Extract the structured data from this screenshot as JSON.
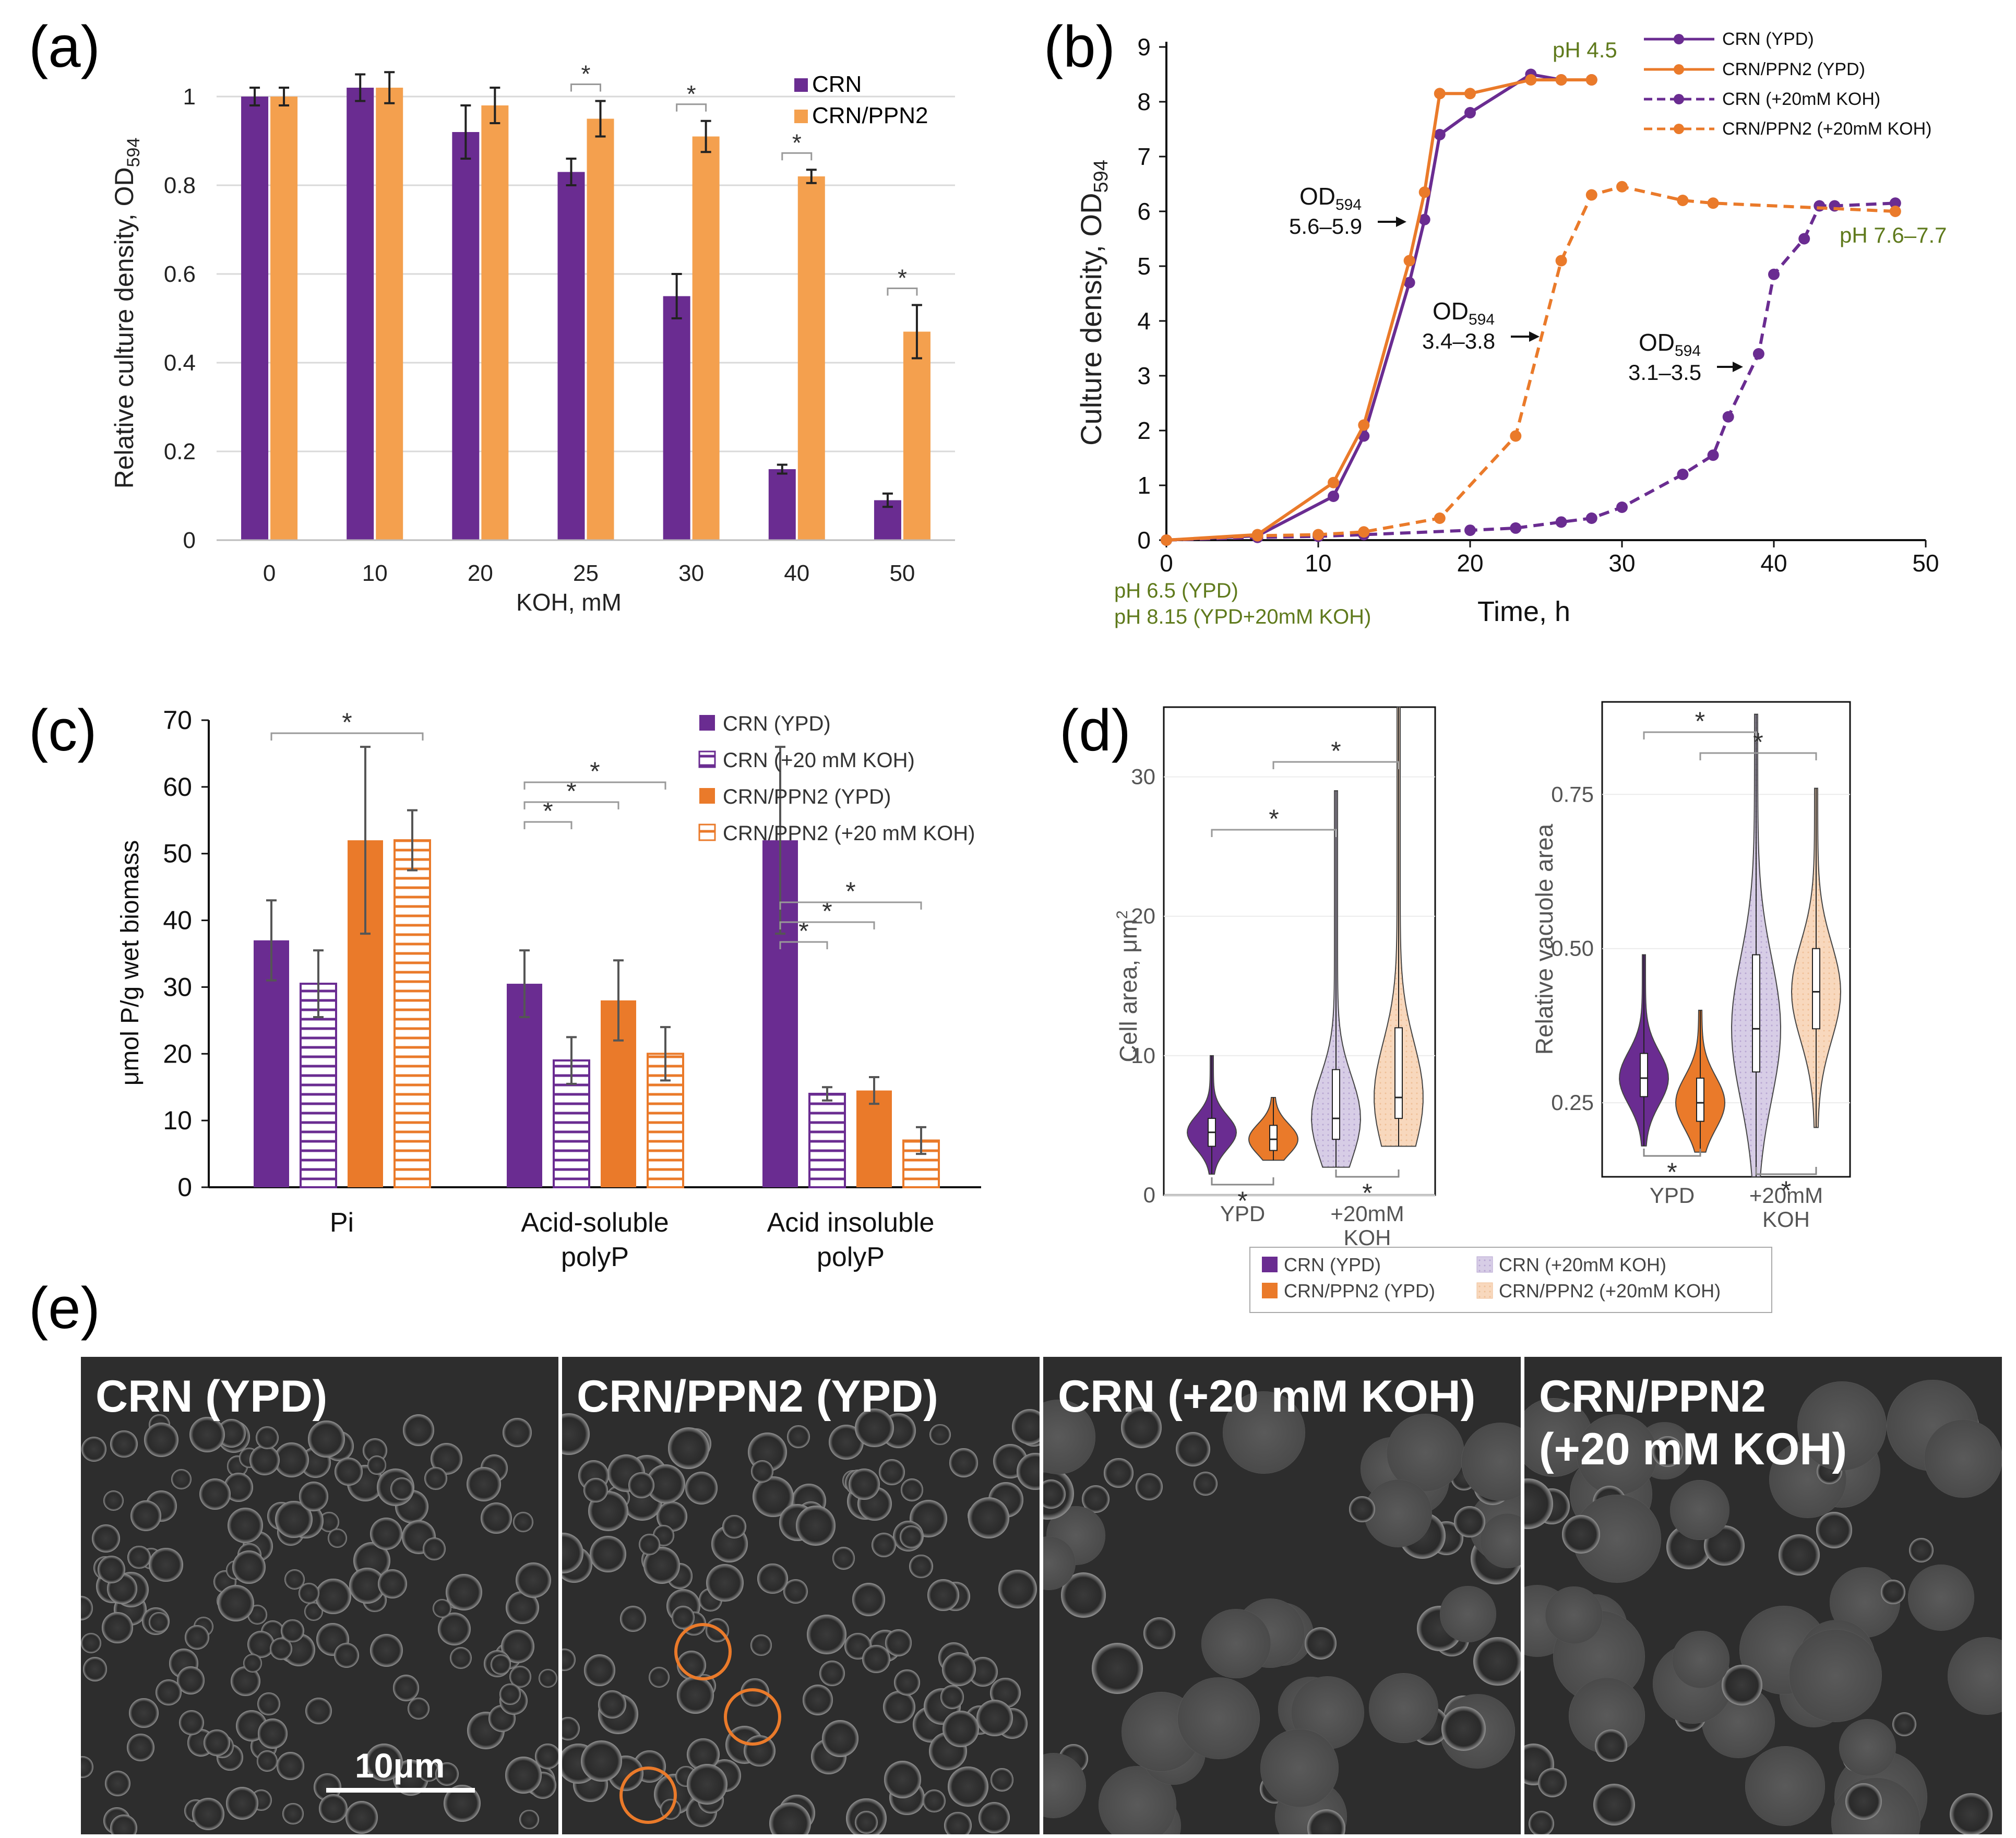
{
  "colors": {
    "crn": "#6a2c91",
    "crn_ppn2": "#f4a04e",
    "crn_ppn2_dark": "#ea7a2a",
    "crn_koh_light": "#d7cde6",
    "crn_ppn2_koh_light": "#f8d8bd",
    "ph_text": "#5f7a1c",
    "grid": "#d9d9d9"
  },
  "panels": {
    "a": "(a)",
    "b": "(b)",
    "c": "(c)",
    "d": "(d)",
    "e": "(e)"
  },
  "chart_data": [
    {
      "id": "a",
      "type": "bar",
      "xlabel": "KOH, mM",
      "ylabel": "Relative culture density, OD",
      "ylabel_sub": "594",
      "ylim": [
        0,
        1
      ],
      "yticks": [
        0,
        0.2,
        0.4,
        0.6,
        0.8,
        1
      ],
      "ytick_labels": [
        "0",
        "0.2",
        "0.4",
        "0.6",
        "0.8",
        "1"
      ],
      "categories": [
        "0",
        "10",
        "20",
        "25",
        "30",
        "40",
        "50"
      ],
      "series": [
        {
          "name": "CRN",
          "values": [
            1.0,
            1.02,
            0.92,
            0.83,
            0.55,
            0.16,
            0.09
          ],
          "errors": [
            0.02,
            0.03,
            0.06,
            0.03,
            0.05,
            0.01,
            0.015
          ]
        },
        {
          "name": "CRN/PPN2",
          "values": [
            1.0,
            1.02,
            0.98,
            0.95,
            0.91,
            0.82,
            0.47
          ],
          "errors": [
            0.02,
            0.035,
            0.04,
            0.04,
            0.035,
            0.015,
            0.06
          ]
        }
      ],
      "significance": [
        "25",
        "30",
        "40",
        "50"
      ],
      "star": "*",
      "grid": true,
      "legend": "top-right"
    },
    {
      "id": "b",
      "type": "line",
      "xlabel": "Time, h",
      "ylabel": "Culture density, OD",
      "ylabel_sub": "594",
      "xlim": [
        0,
        50
      ],
      "ylim": [
        0,
        9
      ],
      "xticks": [
        0,
        10,
        20,
        30,
        40,
        50
      ],
      "yticks": [
        0,
        1,
        2,
        3,
        4,
        5,
        6,
        7,
        8,
        9
      ],
      "series": [
        {
          "name": "CRN (YPD)",
          "dashed": false,
          "color": "crn",
          "x": [
            0,
            6,
            11,
            13,
            16,
            17,
            18,
            20,
            24,
            26,
            28
          ],
          "y": [
            0,
            0.08,
            0.8,
            1.9,
            4.7,
            5.85,
            7.4,
            7.8,
            8.5,
            8.4,
            8.4
          ]
        },
        {
          "name": "CRN/PPN2 (YPD)",
          "dashed": false,
          "color": "crn_ppn2_dark",
          "x": [
            0,
            6,
            11,
            13,
            16,
            17,
            18,
            20,
            24,
            26,
            28
          ],
          "y": [
            0,
            0.1,
            1.05,
            2.1,
            5.1,
            6.35,
            8.15,
            8.15,
            8.4,
            8.4,
            8.4
          ]
        },
        {
          "name": "CRN (+20mM KOH)",
          "dashed": true,
          "color": "crn",
          "x": [
            0,
            6,
            10,
            13,
            20,
            23,
            26,
            28,
            30,
            34,
            36,
            37,
            39,
            40,
            42,
            43,
            44,
            48
          ],
          "y": [
            0,
            0.05,
            0.07,
            0.1,
            0.18,
            0.22,
            0.33,
            0.4,
            0.6,
            1.2,
            1.55,
            2.25,
            3.4,
            4.85,
            5.5,
            6.1,
            6.1,
            6.15
          ]
        },
        {
          "name": "CRN/PPN2 (+20mM KOH)",
          "dashed": true,
          "color": "crn_ppn2_dark",
          "x": [
            0,
            6,
            10,
            13,
            18,
            23,
            26,
            28,
            30,
            34,
            36,
            48
          ],
          "y": [
            0,
            0.08,
            0.1,
            0.15,
            0.4,
            1.9,
            5.1,
            6.3,
            6.45,
            6.2,
            6.15,
            6.0
          ]
        }
      ],
      "annotations": {
        "ph_top": "pH 4.5",
        "ph_right": "pH 7.6–7.7",
        "ph_start_1": "pH 6.5 (YPD)",
        "ph_start_2": "pH 8.15 (YPD+20mM KOH)",
        "od_label": "OD",
        "od_sub": "594",
        "od_1": "5.6–5.9",
        "od_2": "3.4–3.8",
        "od_3": "3.1–3.5"
      },
      "grid": false,
      "legend": "top-right"
    },
    {
      "id": "c",
      "type": "bar",
      "ylabel": "μmol P/g wet biomass",
      "ylim": [
        0,
        70
      ],
      "yticks": [
        0,
        10,
        20,
        30,
        40,
        50,
        60,
        70
      ],
      "categories": [
        "Pi",
        "Acid-soluble\npolyP",
        "Acid insoluble\npolyP"
      ],
      "series": [
        {
          "name": "CRN (YPD)",
          "values": [
            37,
            30.5,
            52
          ],
          "errors": [
            6,
            5,
            14
          ],
          "fill": "solid",
          "color": "crn"
        },
        {
          "name": "CRN (+20 mM KOH)",
          "values": [
            30.5,
            19,
            14
          ],
          "errors": [
            5,
            3.5,
            1
          ],
          "fill": "hatch",
          "color": "crn"
        },
        {
          "name": "CRN/PPN2 (YPD)",
          "values": [
            52,
            28,
            14.5
          ],
          "errors": [
            14,
            6,
            2
          ],
          "fill": "solid",
          "color": "crn_ppn2_dark"
        },
        {
          "name": "CRN/PPN2 (+20 mM KOH)",
          "values": [
            52,
            20,
            7
          ],
          "errors": [
            4.5,
            4,
            2
          ],
          "fill": "hatch",
          "color": "crn_ppn2_dark"
        }
      ],
      "star": "*",
      "grid": false,
      "legend": "top-right"
    },
    {
      "id": "d1",
      "type": "violin",
      "ylabel": "Cell area, μm",
      "ylabel_sup": "2",
      "ylim": [
        0,
        35
      ],
      "yticks": [
        0,
        10,
        20,
        30
      ],
      "groups": [
        "YPD",
        "+20mM\nKOH"
      ],
      "series": [
        {
          "name": "CRN (YPD)",
          "group": "YPD",
          "median": 4.5,
          "q1": 3.5,
          "q3": 5.5,
          "min": 1.5,
          "max": 10
        },
        {
          "name": "CRN/PPN2 (YPD)",
          "group": "YPD",
          "median": 4.0,
          "q1": 3.2,
          "q3": 5.0,
          "min": 2.5,
          "max": 7
        },
        {
          "name": "CRN (+20mM KOH)",
          "group": "+20mM KOH",
          "median": 5.5,
          "q1": 4,
          "q3": 9,
          "min": 2,
          "max": 29
        },
        {
          "name": "CRN/PPN2 (+20mM KOH)",
          "group": "+20mM KOH",
          "median": 7,
          "q1": 5.5,
          "q3": 12,
          "min": 3.5,
          "max": 35
        }
      ]
    },
    {
      "id": "d2",
      "type": "violin",
      "ylabel": "Relative vacuole area",
      "ylim": [
        0.13,
        0.9
      ],
      "yticks": [
        0.25,
        0.5,
        0.75
      ],
      "ytick_labels": [
        "0.25",
        "0.50",
        "0.75"
      ],
      "groups": [
        "YPD",
        "+20mM\nKOH"
      ],
      "series": [
        {
          "name": "CRN (YPD)",
          "group": "YPD",
          "median": 0.29,
          "q1": 0.26,
          "q3": 0.33,
          "min": 0.18,
          "max": 0.49
        },
        {
          "name": "CRN/PPN2 (YPD)",
          "group": "YPD",
          "median": 0.25,
          "q1": 0.22,
          "q3": 0.29,
          "min": 0.17,
          "max": 0.4
        },
        {
          "name": "CRN (+20mM KOH)",
          "group": "+20mM KOH",
          "median": 0.37,
          "q1": 0.3,
          "q3": 0.49,
          "min": 0.13,
          "max": 0.88
        },
        {
          "name": "CRN/PPN2 (+20mM KOH)",
          "group": "+20mM KOH",
          "median": 0.43,
          "q1": 0.37,
          "q3": 0.5,
          "min": 0.21,
          "max": 0.76
        }
      ],
      "legend": [
        "CRN (YPD)",
        "CRN (+20mM KOH)",
        "CRN/PPN2 (YPD)",
        "CRN/PPN2 (+20mM KOH)"
      ]
    }
  ],
  "micrographs": [
    {
      "title": "CRN (YPD)",
      "scale_label": "10μm"
    },
    {
      "title": "CRN/PPN2 (YPD)"
    },
    {
      "title": "CRN (+20 mM KOH)"
    },
    {
      "title": "CRN/PPN2\n(+20 mM KOH)"
    }
  ]
}
